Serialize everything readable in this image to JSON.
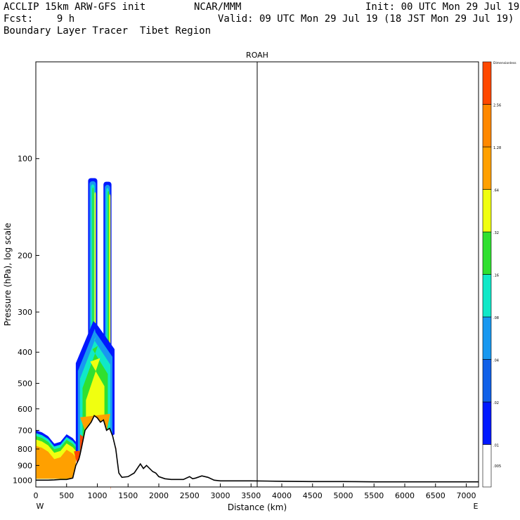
{
  "header": {
    "line1_left": "ACCLIP 15km ARW-GFS init",
    "line1_center": "NCAR/MMM",
    "line1_right": "Init: 00 UTC Mon 29 Jul 19",
    "line2_left": "Fcst:    9 h",
    "line2_right": "Valid: 09 UTC Mon 29 Jul 19 (18 JST Mon 29 Jul 19)",
    "line3_left": "Boundary Layer Tracer  Tibet Region"
  },
  "chart_data": {
    "type": "contour-cross-section",
    "title": "ROAH",
    "xlabel": "Distance (km)",
    "ylabel": "Pressure (hPa), log scale",
    "xlim": [
      0,
      7200
    ],
    "ylim_hpa": [
      1050,
      50
    ],
    "y_scale": "log",
    "x_ticks": [
      0,
      500,
      1000,
      1500,
      2000,
      2500,
      3000,
      3500,
      4000,
      4500,
      5000,
      5500,
      6000,
      6500,
      7000
    ],
    "y_ticks": [
      100,
      200,
      300,
      400,
      500,
      600,
      700,
      800,
      900,
      1000
    ],
    "x_end_labels": {
      "left": "W",
      "right": "E"
    },
    "vertical_marker_km": 3600,
    "colorbar": {
      "title": "Dimensionless",
      "levels": [
        ".005",
        ".01",
        ".02",
        ".04",
        ".08",
        ".16",
        ".32",
        ".64",
        "1.28",
        "2.56"
      ],
      "colors": [
        "#ffffff",
        "#0018ff",
        "#1060e8",
        "#1898f0",
        "#10e8c8",
        "#30e030",
        "#f0ff10",
        "#ffa000",
        "#ff8800",
        "#ff4800"
      ]
    },
    "terrain_surface": {
      "x_km": [
        0,
        100,
        200,
        300,
        400,
        500,
        600,
        650,
        700,
        720,
        750,
        800,
        850,
        900,
        950,
        1000,
        1050,
        1100,
        1150,
        1200,
        1250,
        1300,
        1350,
        1400,
        1500,
        1600,
        1700,
        1750,
        1800,
        1900,
        1950,
        2000,
        2100,
        2200,
        2400,
        2500,
        2550,
        2600,
        2700,
        2800,
        2900,
        3000,
        3500,
        4000,
        4500,
        5000,
        5500,
        6000,
        6500,
        7000,
        7200
      ],
      "pressure_hpa": [
        1000,
        1000,
        1000,
        998,
        995,
        995,
        985,
        900,
        860,
        830,
        780,
        700,
        680,
        660,
        630,
        640,
        660,
        650,
        700,
        690,
        730,
        800,
        950,
        980,
        975,
        950,
        890,
        920,
        900,
        940,
        950,
        975,
        990,
        995,
        995,
        975,
        990,
        985,
        970,
        980,
        1000,
        1005,
        1005,
        1008,
        1010,
        1010,
        1012,
        1012,
        1012,
        1012,
        1012
      ]
    },
    "tracer_regions": [
      {
        "name": "low-west",
        "x_km": [
          0,
          100,
          200,
          300,
          400,
          500,
          600,
          650
        ],
        "top_hpa": [
          700,
          710,
          730,
          770,
          760,
          720,
          740,
          760
        ],
        "peak_band": ".64-1.28"
      },
      {
        "name": "column-1",
        "x_km": [
          850,
          1000
        ],
        "top_hpa": 115,
        "peak_band": ".32-.64"
      },
      {
        "name": "column-2",
        "x_km": [
          1100,
          1230
        ],
        "top_hpa": 118,
        "peak_band": ".32-.64"
      },
      {
        "name": "lower-mound",
        "x_km": [
          650,
          1280
        ],
        "top_hpa": 320,
        "peak_band": "1.28-2.56"
      }
    ]
  }
}
